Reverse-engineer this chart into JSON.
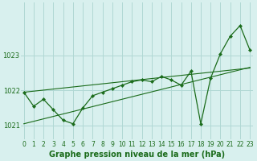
{
  "title": "Graphe pression niveau de la mer (hPa)",
  "x_hours": [
    0,
    1,
    2,
    3,
    4,
    5,
    6,
    7,
    8,
    9,
    10,
    11,
    12,
    13,
    14,
    15,
    16,
    17,
    18,
    19,
    20,
    21,
    22,
    23
  ],
  "pressure": [
    1021.95,
    1021.55,
    1021.75,
    1021.45,
    1021.15,
    1021.05,
    1021.5,
    1021.85,
    1021.95,
    1022.05,
    1022.15,
    1022.25,
    1022.3,
    1022.25,
    1022.4,
    1022.3,
    1022.15,
    1022.55,
    1021.05,
    1022.35,
    1023.05,
    1023.55,
    1023.85,
    1023.15
  ],
  "trend_low": [
    1021.05,
    1021.12,
    1021.19,
    1021.26,
    1021.33,
    1021.4,
    1021.47,
    1021.54,
    1021.61,
    1021.68,
    1021.75,
    1021.82,
    1021.89,
    1021.96,
    1022.03,
    1022.1,
    1022.17,
    1022.24,
    1022.31,
    1022.38,
    1022.45,
    1022.52,
    1022.59,
    1022.66
  ],
  "trend_high": [
    1021.95,
    1021.98,
    1022.01,
    1022.04,
    1022.07,
    1022.1,
    1022.13,
    1022.16,
    1022.19,
    1022.22,
    1022.25,
    1022.28,
    1022.31,
    1022.34,
    1022.37,
    1022.4,
    1022.43,
    1022.46,
    1022.49,
    1022.52,
    1022.55,
    1022.58,
    1022.61,
    1022.64
  ],
  "ylim": [
    1020.6,
    1024.5
  ],
  "yticks": [
    1021,
    1022,
    1023
  ],
  "bg_color": "#d8f0ee",
  "line_color": "#1a6b1a",
  "grid_color": "#b0d8d4",
  "title_fontsize": 7.0,
  "axis_fontsize": 5.5
}
